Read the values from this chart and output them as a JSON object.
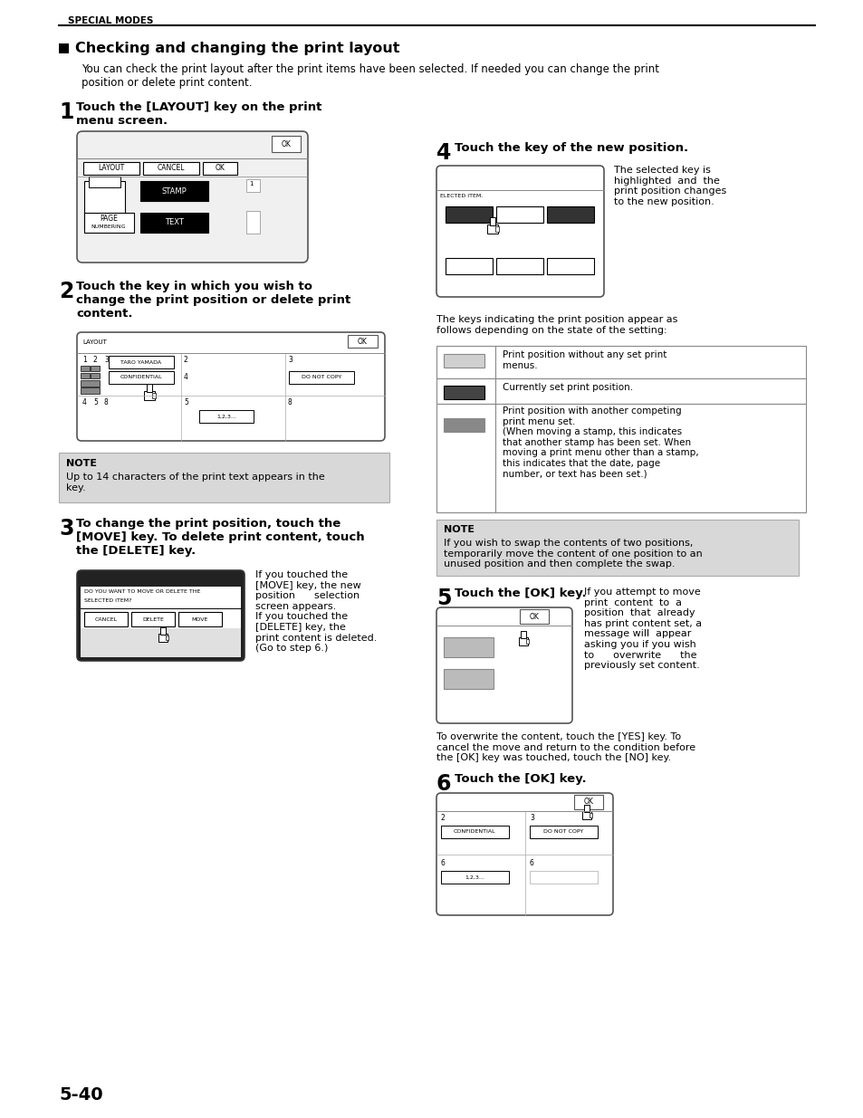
{
  "title": "Checking and changing the print layout",
  "header": "SPECIAL MODES",
  "page_num": "5-40",
  "bg_color": "#ffffff",
  "intro_text": "You can check the print layout after the print items have been selected. If needed you can change the print\nposition or delete print content.",
  "step1_title": "Touch the [LAYOUT] key on the print\nmenu screen.",
  "step2_title": "Touch the key in which you wish to\nchange the print position or delete print\ncontent.",
  "step3_title": "To change the print position, touch the\n[MOVE] key. To delete print content, touch\nthe [DELETE] key.",
  "step4_title": "Touch the key of the new position.",
  "step5_title": "Touch the [OK] key.",
  "step6_title": "Touch the [OK] key.",
  "note1_text": "Up to 14 characters of the print text appears in the\nkey.",
  "note2_text": "If you wish to swap the contents of two positions,\ntemporarily move the content of one position to an\nunused position and then complete the swap.",
  "step3_body": "If you touched the\n[MOVE] key, the new\nposition      selection\nscreen appears.\nIf you touched the\n[DELETE] key, the\nprint content is deleted.\n(Go to step 6.)",
  "step4_body": "The selected key is\nhighlighted  and  the\nprint position changes\nto the new position.",
  "step5_body": "If you attempt to move\nprint  content  to  a\nposition  that  already\nhas print content set, a\nmessage will  appear\nasking you if you wish\nto      overwrite      the\npreviously set content.",
  "step5_footer": "To overwrite the content, touch the [YES] key. To\ncancel the move and return to the condition before\nthe [OK] key was touched, touch the [NO] key.",
  "keys_text1": "Print position without any set print\nmenus.",
  "keys_text2": "Currently set print position.",
  "keys_text3": "Print position with another competing\nprint menu set.\n(When moving a stamp, this indicates\nthat another stamp has been set. When\nmoving a print menu other than a stamp,\nthis indicates that the date, page\nnumber, or text has been set.)",
  "keys_intro": "The keys indicating the print position appear as\nfollows depending on the state of the setting:"
}
